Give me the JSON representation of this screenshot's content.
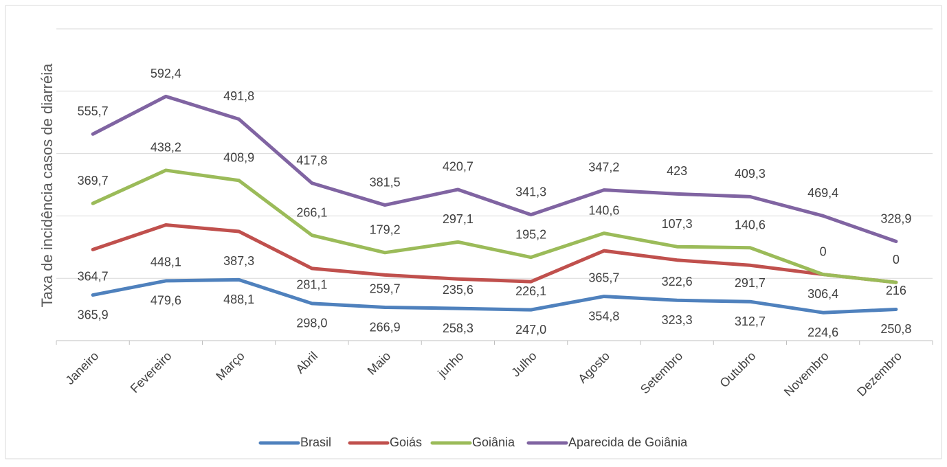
{
  "chart_data": {
    "type": "line",
    "stacked": true,
    "y_axis_label": "Taxa de incidência casos de diarréia",
    "categories": [
      "Janeiro",
      "Fevereiro",
      "Março",
      "Abril",
      "Maio",
      "junho",
      "Julho",
      "Agosto",
      "Setembro",
      "Outubro",
      "Novembro",
      "Dezembro"
    ],
    "series": [
      {
        "name": "Brasil",
        "color": "#4f81bd",
        "values": [
          365.9,
          479.6,
          488.1,
          298.0,
          266.9,
          258.3,
          247.0,
          354.8,
          323.3,
          312.7,
          224.6,
          250.8
        ],
        "value_labels": [
          "365,9",
          "479,6",
          "488,1",
          "298,0",
          "266,9",
          "258,3",
          "247,0",
          "354,8",
          "323,3",
          "312,7",
          "224,6",
          "250,8"
        ]
      },
      {
        "name": "Goiás",
        "color": "#c0504d",
        "values": [
          364.7,
          448.1,
          387.3,
          281.1,
          259.7,
          235.6,
          226.1,
          365.7,
          322.6,
          291.7,
          306.4,
          216
        ],
        "value_labels": [
          "364,7",
          "448,1",
          "387,3",
          "281,1",
          "259,7",
          "235,6",
          "226,1",
          "365,7",
          "322,6",
          "291,7",
          "306,4",
          "216"
        ]
      },
      {
        "name": "Goiânia",
        "color": "#9bbb59",
        "values": [
          369.7,
          438.2,
          408.9,
          266.1,
          179.2,
          297.1,
          195.2,
          140.6,
          107.3,
          140.6,
          0,
          0
        ],
        "value_labels": [
          "369,7",
          "438,2",
          "408,9",
          "266,1",
          "179,2",
          "297,1",
          "195,2",
          "140,6",
          "107,3",
          "140,6",
          "0",
          "0"
        ]
      },
      {
        "name": "Aparecida de Goiânia",
        "color": "#8064a2",
        "values": [
          555.7,
          592.4,
          491.8,
          417.8,
          381.5,
          420.7,
          341.3,
          347.2,
          423,
          409.3,
          469.4,
          328.9
        ],
        "value_labels": [
          "555,7",
          "592,4",
          "491,8",
          "417,8",
          "381,5",
          "420,7",
          "341,3",
          "347,2",
          "423",
          "409,3",
          "469,4",
          "328,9"
        ]
      }
    ],
    "ylim": [
      0,
      2500
    ],
    "yticks": [
      0,
      500,
      1000,
      1500,
      2000,
      2500
    ],
    "grid": true,
    "legend": "bottom"
  }
}
